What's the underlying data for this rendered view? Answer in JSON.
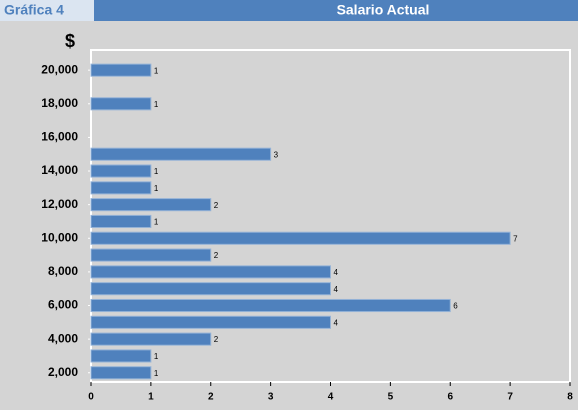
{
  "header": "Gráfica 4",
  "chart_data": {
    "type": "bar",
    "orientation": "horizontal",
    "title": "Salario Actual",
    "y_label": "$",
    "y": [
      2000,
      3000,
      4000,
      5000,
      6000,
      7000,
      8000,
      9000,
      10000,
      11000,
      12000,
      13000,
      14000,
      15000,
      18000,
      20000
    ],
    "values": [
      1,
      1,
      2,
      4,
      6,
      4,
      4,
      2,
      7,
      1,
      2,
      1,
      1,
      3,
      1,
      1
    ],
    "color": "#4f81bd",
    "xlim": [
      0,
      8
    ],
    "xticks": [
      0,
      1,
      2,
      3,
      4,
      5,
      6,
      7,
      8
    ],
    "ylim": [
      1450,
      21200
    ],
    "yticks": [
      {
        "value": 2000,
        "label": "2,000"
      },
      {
        "value": 4000,
        "label": "4,000"
      },
      {
        "value": 6000,
        "label": "6,000"
      },
      {
        "value": 8000,
        "label": "8,000"
      },
      {
        "value": 10000,
        "label": "10,000"
      },
      {
        "value": 12000,
        "label": "12,000"
      },
      {
        "value": 14000,
        "label": "14,000"
      },
      {
        "value": 16000,
        "label": "16,000"
      },
      {
        "value": 18000,
        "label": "18,000"
      },
      {
        "value": 20000,
        "label": "20,000"
      }
    ],
    "grid": false
  }
}
